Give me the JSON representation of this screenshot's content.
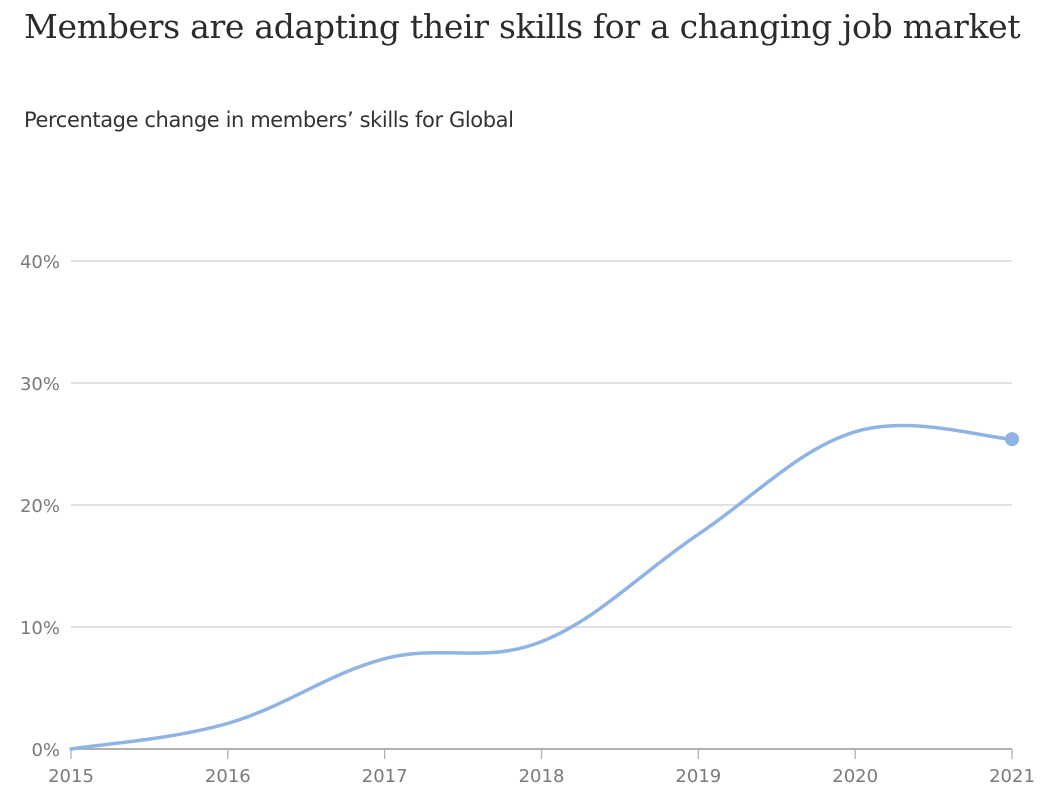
{
  "header": {
    "title": "Members are adapting their skills for a changing job market",
    "subtitle": "Percentage change in members’ skills for Global"
  },
  "colors": {
    "line": "#8fb4e3",
    "grid": "#cfcfcf",
    "axis": "#b0b0b0",
    "tick_text": "#7a7a7a",
    "title_text": "#2b2b2b"
  },
  "chart_data": {
    "type": "line",
    "title": "Members are adapting their skills for a changing job market",
    "subtitle": "Percentage change in members’ skills for Global",
    "xlabel": "",
    "ylabel": "",
    "categories": [
      "2015",
      "2016",
      "2017",
      "2018",
      "2019",
      "2020",
      "2021"
    ],
    "series": [
      {
        "name": "Global",
        "values": [
          0,
          2.1,
          7.4,
          8.8,
          17.6,
          26.0,
          25.4
        ]
      }
    ],
    "ylim": [
      0,
      40
    ],
    "yticks": [
      "0%",
      "10%",
      "20%",
      "30%",
      "40%"
    ],
    "ytick_values": [
      0,
      10,
      20,
      30,
      40
    ],
    "grid": true,
    "legend": "none",
    "annotations": [
      "End-point marker on 2021"
    ]
  }
}
